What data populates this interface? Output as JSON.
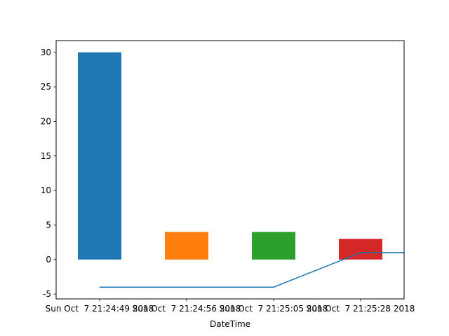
{
  "chart_data": {
    "type": "bar",
    "title": "",
    "xlabel": "DateTime",
    "ylabel": "",
    "ylim": [
      -5.7,
      31.7
    ],
    "yticks": [
      -5,
      0,
      5,
      10,
      15,
      20,
      25,
      30
    ],
    "categories": [
      "Sun Oct  7 21:24:49 2018",
      "Sun Oct  7 21:24:56 2018",
      "Sun Oct  7 21:25:05 2018",
      "Sun Oct  7 21:25:28 2018"
    ],
    "bar_values": [
      30,
      4,
      4,
      3
    ],
    "bar_colors": [
      "#1f77b4",
      "#ff7f0e",
      "#2ca02c",
      "#d62728"
    ],
    "line": {
      "color": "#1f77b4",
      "points": [
        {
          "x": "Sun Oct  7 21:24:49 2018",
          "y": -4
        },
        {
          "x": "Sun Oct  7 21:25:05 2018",
          "y": -4
        },
        {
          "x": "Sun Oct  7 21:25:28 2018",
          "y": 1
        },
        {
          "x": "",
          "y": 1
        }
      ]
    },
    "grid": false,
    "legend": "none"
  }
}
